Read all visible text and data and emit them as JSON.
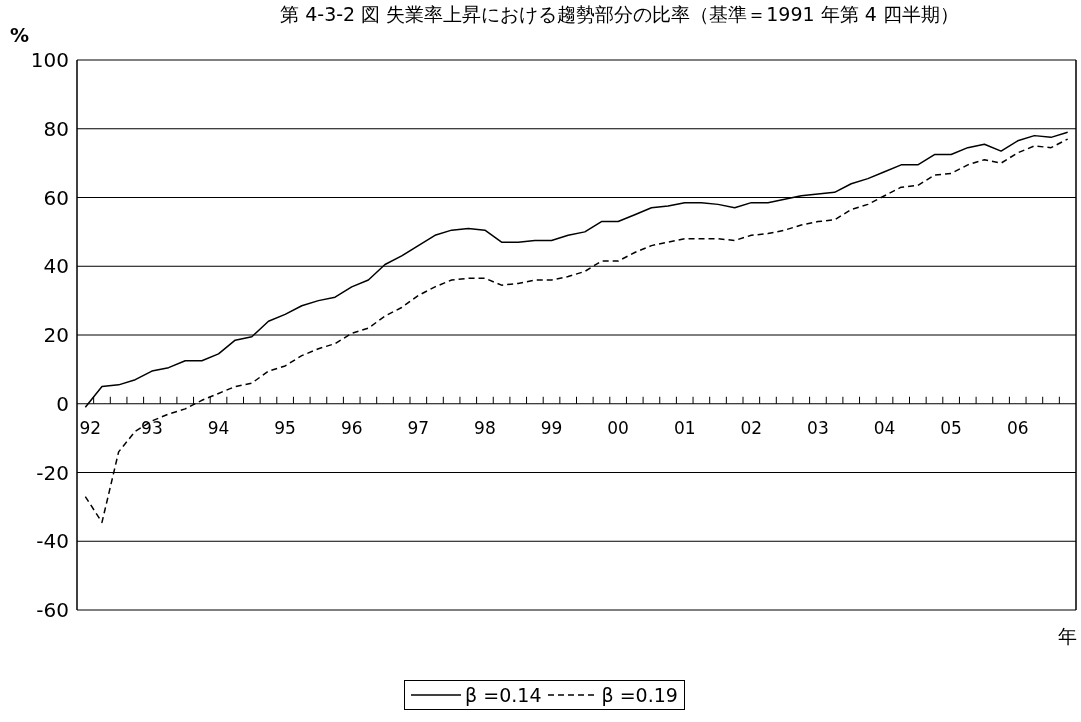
{
  "chart_data": {
    "type": "line",
    "title": "第 4-3-2 図 失業率上昇における趨勢部分の比率（基準＝1991 年第 4 四半期）",
    "xlabel": "年",
    "ylabel": "%",
    "categories": [
      "92",
      null,
      null,
      null,
      "93",
      null,
      null,
      null,
      "94",
      null,
      null,
      null,
      "95",
      null,
      null,
      null,
      "96",
      null,
      null,
      null,
      "97",
      null,
      null,
      null,
      "98",
      null,
      null,
      null,
      "99",
      null,
      null,
      null,
      "00",
      null,
      null,
      null,
      "01",
      null,
      null,
      null,
      "02",
      null,
      null,
      null,
      "03",
      null,
      null,
      null,
      "04",
      null,
      null,
      null,
      "05",
      null,
      null,
      null,
      "06",
      null,
      null,
      null
    ],
    "series": [
      {
        "name": "β =0.14",
        "color": "#000000",
        "line_style": "solid",
        "values": [
          -1,
          5,
          5.5,
          7,
          9.5,
          10.5,
          12.5,
          12.5,
          14.5,
          18.5,
          19.5,
          24,
          26,
          28.5,
          30,
          31,
          34,
          36,
          40.5,
          43,
          46,
          49,
          50.5,
          51,
          50.5,
          47,
          47,
          47.5,
          47.5,
          49,
          50,
          53,
          53,
          55,
          57,
          57.5,
          58.5,
          58.5,
          58,
          57,
          58.5,
          58.5,
          59.5,
          60.5,
          61,
          61.5,
          64,
          65.5,
          67.5,
          69.5,
          69.5,
          72.5,
          72.5,
          74.5,
          75.5,
          73.5,
          76.5,
          78,
          77.5,
          79
        ]
      },
      {
        "name": "β =0.19",
        "color": "#000000",
        "line_style": "dashed",
        "values": [
          -27,
          -34.5,
          -14,
          -8,
          -5,
          -3,
          -1.5,
          1,
          3,
          5,
          6,
          9.5,
          11,
          14,
          16,
          17.5,
          20.5,
          22,
          25.5,
          28,
          31.5,
          34,
          36,
          36.5,
          36.5,
          34.5,
          35,
          36,
          36,
          37,
          38.5,
          41.5,
          41.5,
          44,
          46,
          47,
          48,
          48,
          48,
          47.5,
          49,
          49.5,
          50.5,
          52,
          53,
          53.5,
          56.5,
          58,
          60.5,
          63,
          63.5,
          66.5,
          67,
          69.5,
          71,
          70,
          73,
          75,
          74.5,
          77
        ]
      }
    ],
    "ylim": [
      -60,
      100
    ],
    "yticks": [
      -60,
      -40,
      -20,
      0,
      20,
      40,
      60,
      80,
      100
    ],
    "grid": "y",
    "legend": "bottom"
  }
}
